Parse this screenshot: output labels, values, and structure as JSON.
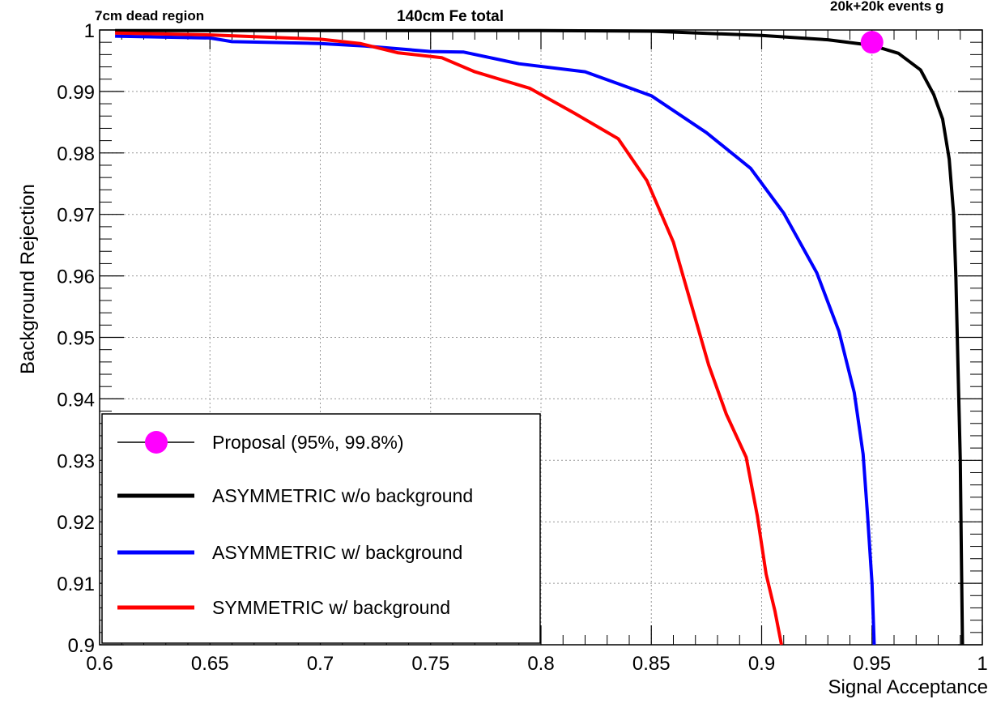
{
  "header": {
    "left": "7cm dead region",
    "center": "140cm Fe total",
    "right": "20k+20k events g"
  },
  "colors": {
    "asym_nobkg": "#000000",
    "asym_bkg": "#0000ff",
    "sym_bkg": "#ff0000",
    "proposal": "#ff00ff",
    "grid": "#999999"
  },
  "chart_data": {
    "type": "line",
    "title": "",
    "xlabel": "Signal Acceptance",
    "ylabel": "Background Rejection",
    "xlim": [
      0.6,
      1.0
    ],
    "ylim": [
      0.9,
      1.0
    ],
    "grid": true,
    "legend_position": "bottom-left",
    "x_ticks": [
      0.6,
      0.65,
      0.7,
      0.75,
      0.8,
      0.85,
      0.9,
      0.95,
      1.0
    ],
    "x_tick_labels": [
      "0.6",
      "0.65",
      "0.7",
      "0.75",
      "0.8",
      "0.85",
      "0.9",
      "0.95",
      "1"
    ],
    "y_ticks": [
      0.9,
      0.91,
      0.92,
      0.93,
      0.94,
      0.95,
      0.96,
      0.97,
      0.98,
      0.99,
      1.0
    ],
    "y_tick_labels": [
      "0.9",
      "0.91",
      "0.92",
      "0.93",
      "0.94",
      "0.95",
      "0.96",
      "0.97",
      "0.98",
      "0.99",
      "1"
    ],
    "markers": [
      {
        "name": "Proposal (95%, 99.8%)",
        "x": 0.95,
        "y": 0.998,
        "color": "#ff00ff"
      }
    ],
    "series": [
      {
        "name": "ASYMMETRIC w/o background",
        "color": "#000000",
        "points": [
          [
            0.607,
            0.9999
          ],
          [
            0.75,
            0.9999
          ],
          [
            0.8,
            0.9999
          ],
          [
            0.85,
            0.9998
          ],
          [
            0.9,
            0.9991
          ],
          [
            0.93,
            0.9984
          ],
          [
            0.95,
            0.9975
          ],
          [
            0.962,
            0.9962
          ],
          [
            0.972,
            0.9935
          ],
          [
            0.978,
            0.9895
          ],
          [
            0.982,
            0.9855
          ],
          [
            0.985,
            0.979
          ],
          [
            0.987,
            0.97
          ],
          [
            0.988,
            0.96
          ],
          [
            0.989,
            0.945
          ],
          [
            0.99,
            0.93
          ],
          [
            0.9905,
            0.915
          ],
          [
            0.991,
            0.9
          ]
        ]
      },
      {
        "name": "ASYMMETRIC w/ background",
        "color": "#0000ff",
        "points": [
          [
            0.607,
            0.999
          ],
          [
            0.65,
            0.9987
          ],
          [
            0.66,
            0.9981
          ],
          [
            0.7,
            0.9978
          ],
          [
            0.72,
            0.9974
          ],
          [
            0.75,
            0.9965
          ],
          [
            0.765,
            0.9964
          ],
          [
            0.79,
            0.9945
          ],
          [
            0.82,
            0.9932
          ],
          [
            0.85,
            0.9893
          ],
          [
            0.875,
            0.9833
          ],
          [
            0.895,
            0.9775
          ],
          [
            0.91,
            0.9702
          ],
          [
            0.925,
            0.9605
          ],
          [
            0.935,
            0.951
          ],
          [
            0.942,
            0.941
          ],
          [
            0.946,
            0.931
          ],
          [
            0.948,
            0.921
          ],
          [
            0.95,
            0.91
          ],
          [
            0.951,
            0.9
          ]
        ]
      },
      {
        "name": "SYMMETRIC w/ background",
        "color": "#ff0000",
        "points": [
          [
            0.607,
            0.9995
          ],
          [
            0.65,
            0.9992
          ],
          [
            0.7,
            0.9985
          ],
          [
            0.718,
            0.9978
          ],
          [
            0.735,
            0.9963
          ],
          [
            0.755,
            0.9955
          ],
          [
            0.77,
            0.9932
          ],
          [
            0.795,
            0.9905
          ],
          [
            0.815,
            0.9865
          ],
          [
            0.835,
            0.9823
          ],
          [
            0.848,
            0.9755
          ],
          [
            0.86,
            0.9655
          ],
          [
            0.868,
            0.9555
          ],
          [
            0.876,
            0.9455
          ],
          [
            0.884,
            0.9375
          ],
          [
            0.893,
            0.9305
          ],
          [
            0.898,
            0.921
          ],
          [
            0.902,
            0.9115
          ],
          [
            0.906,
            0.9055
          ],
          [
            0.909,
            0.9
          ]
        ]
      }
    ]
  }
}
